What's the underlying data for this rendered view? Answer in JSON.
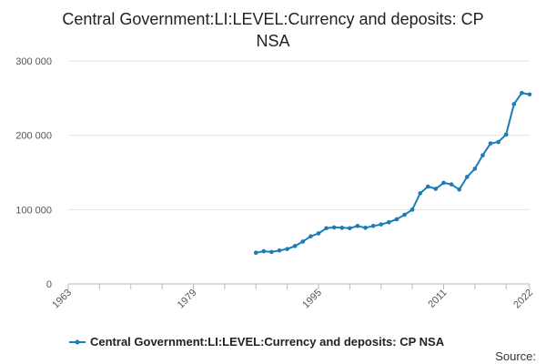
{
  "chart_data": {
    "type": "line",
    "title": "Central Government:LI:LEVEL:Currency and deposits: CP NSA",
    "xlabel": "",
    "ylabel": "",
    "xlim": [
      1963,
      2022
    ],
    "ylim": [
      0,
      300000
    ],
    "x_ticks": [
      1963,
      1979,
      1995,
      2011,
      2022
    ],
    "x_tick_labels": [
      "1963",
      "1979",
      "1995",
      "2011",
      "2022"
    ],
    "y_ticks": [
      0,
      100000,
      200000,
      300000
    ],
    "y_tick_labels": [
      "0",
      "100 000",
      "200 000",
      "300 000"
    ],
    "grid": "horizontal",
    "legend_position": "bottom",
    "series": [
      {
        "name": "Central Government:LI:LEVEL:Currency and deposits: CP NSA",
        "color": "#1a7db6",
        "x": [
          1987,
          1988,
          1989,
          1990,
          1991,
          1992,
          1993,
          1994,
          1995,
          1996,
          1997,
          1998,
          1999,
          2000,
          2001,
          2002,
          2003,
          2004,
          2005,
          2006,
          2007,
          2008,
          2009,
          2010,
          2011,
          2012,
          2013,
          2014,
          2015,
          2016,
          2017,
          2018,
          2019,
          2020,
          2021,
          2022
        ],
        "y": [
          42000,
          44000,
          43000,
          45000,
          47000,
          51000,
          57000,
          64000,
          68000,
          75000,
          76000,
          75500,
          75000,
          78000,
          75500,
          78000,
          80000,
          83000,
          87000,
          93000,
          100000,
          122000,
          131000,
          128000,
          136000,
          134000,
          127000,
          144000,
          155000,
          173000,
          189000,
          191000,
          201000,
          242000,
          257000,
          255000
        ]
      }
    ]
  },
  "source_label": "Source:"
}
